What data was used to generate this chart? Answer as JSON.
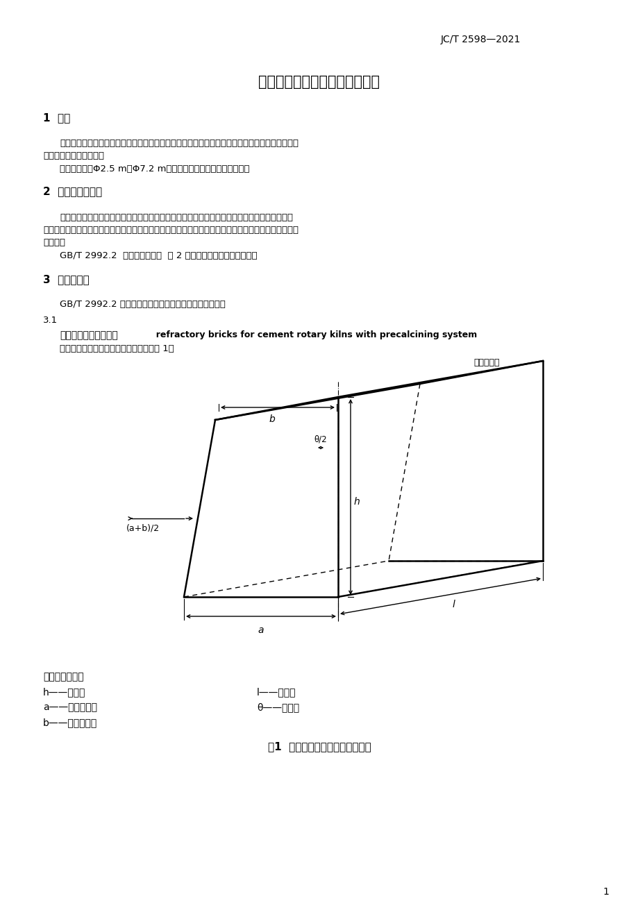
{
  "background_color": "#ffffff",
  "page_width": 9.2,
  "page_height": 13.14,
  "header_text": "JC/T 2598—2021",
  "main_title": "水泥预分解窑用耐火砖形状尺寸",
  "section1_heading": "1  范围",
  "section1_para1": "本文件规定了水泥预分解窑用耐火砖的术语和定义、砖号及规格、尺寸参数、窑衬配砖方案及配砖",
  "section1_para1b": "表、砖型尺寸允许偏差。",
  "section1_para2": "本文件适用于Φ2.5 m～Φ7.2 m的水泥预分解回转窑工作衬用砖。",
  "section2_heading": "2  规范性引用文件",
  "section2_para1": "下列文件中的内容通过文中的规范性引用而构成本文件必不可少的条款。其中，注日期的引用文",
  "section2_para1b": "件，仅该日期对应的版本适用于本文件；不注日期的引用文件，其最新版本（包括所有的修改单）适用于",
  "section2_para1c": "本文件。",
  "section2_ref": "GB/T 2992.2  耐火砖形状尺寸  第 2 部分：耐火砖砖形及础体术语",
  "section3_heading": "3  术语和定义",
  "section3_para1": "GB/T 2992.2 界定的以及下列术语和定义适用于本文件。",
  "section31": "3.1",
  "section31_term_cn": "水泥预分解窑用耐火砖",
  "section31_term_en": "  refractory bricks for cement rotary kilns with precalcining system",
  "section31_def": "用于水泥预分解窑的专用双檔形砖，见图 1。",
  "unit_label": "单位为毫米",
  "legend_title": "标引符号说明：",
  "legend_h": "h——砖高；",
  "legend_l": "l——砖长；",
  "legend_a": "a——砖的大端；",
  "legend_theta": "θ——锥角。",
  "legend_b": "b——砖的小端；",
  "fig_caption": "图1  水泥预分解窑用耐火砖示意图",
  "page_number": "1"
}
